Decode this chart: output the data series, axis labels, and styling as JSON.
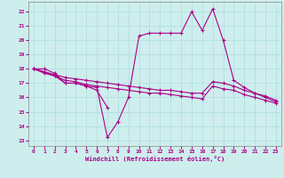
{
  "xlabel": "Windchill (Refroidissement éolien,°C)",
  "bg_color": "#ceeeed",
  "grid_color": "#aadddd",
  "line_color": "#aa0088",
  "x_values": [
    0,
    1,
    2,
    3,
    4,
    5,
    6,
    7,
    8,
    9,
    10,
    11,
    12,
    13,
    14,
    15,
    16,
    17,
    18,
    19,
    20,
    21,
    22,
    23
  ],
  "series1": [
    18.0,
    18.0,
    17.7,
    17.0,
    17.0,
    16.8,
    16.7,
    13.2,
    14.3,
    16.0,
    20.3,
    20.5,
    20.5,
    20.5,
    20.5,
    22.0,
    20.7,
    22.2,
    20.0,
    17.2,
    16.7,
    16.3,
    16.0,
    15.7
  ],
  "series2_x": [
    0,
    1,
    2,
    3,
    4,
    5,
    6,
    7
  ],
  "series2_y": [
    18.0,
    17.8,
    17.5,
    17.0,
    17.0,
    16.8,
    16.5,
    15.3
  ],
  "series3": [
    18.0,
    17.8,
    17.6,
    17.4,
    17.3,
    17.2,
    17.1,
    17.0,
    16.9,
    16.8,
    16.7,
    16.6,
    16.5,
    16.5,
    16.4,
    16.3,
    16.3,
    17.1,
    17.0,
    16.8,
    16.5,
    16.3,
    16.1,
    15.8
  ],
  "series4": [
    18.0,
    17.7,
    17.5,
    17.2,
    17.1,
    16.9,
    16.8,
    16.7,
    16.6,
    16.5,
    16.4,
    16.3,
    16.3,
    16.2,
    16.1,
    16.0,
    15.9,
    16.8,
    16.6,
    16.5,
    16.2,
    16.0,
    15.8,
    15.6
  ],
  "ylim_min": 12.6,
  "ylim_max": 22.7,
  "yticks": [
    13,
    14,
    15,
    16,
    17,
    18,
    19,
    20,
    21,
    22
  ],
  "xticks": [
    0,
    1,
    2,
    3,
    4,
    5,
    6,
    7,
    8,
    9,
    10,
    11,
    12,
    13,
    14,
    15,
    16,
    17,
    18,
    19,
    20,
    21,
    22,
    23
  ]
}
